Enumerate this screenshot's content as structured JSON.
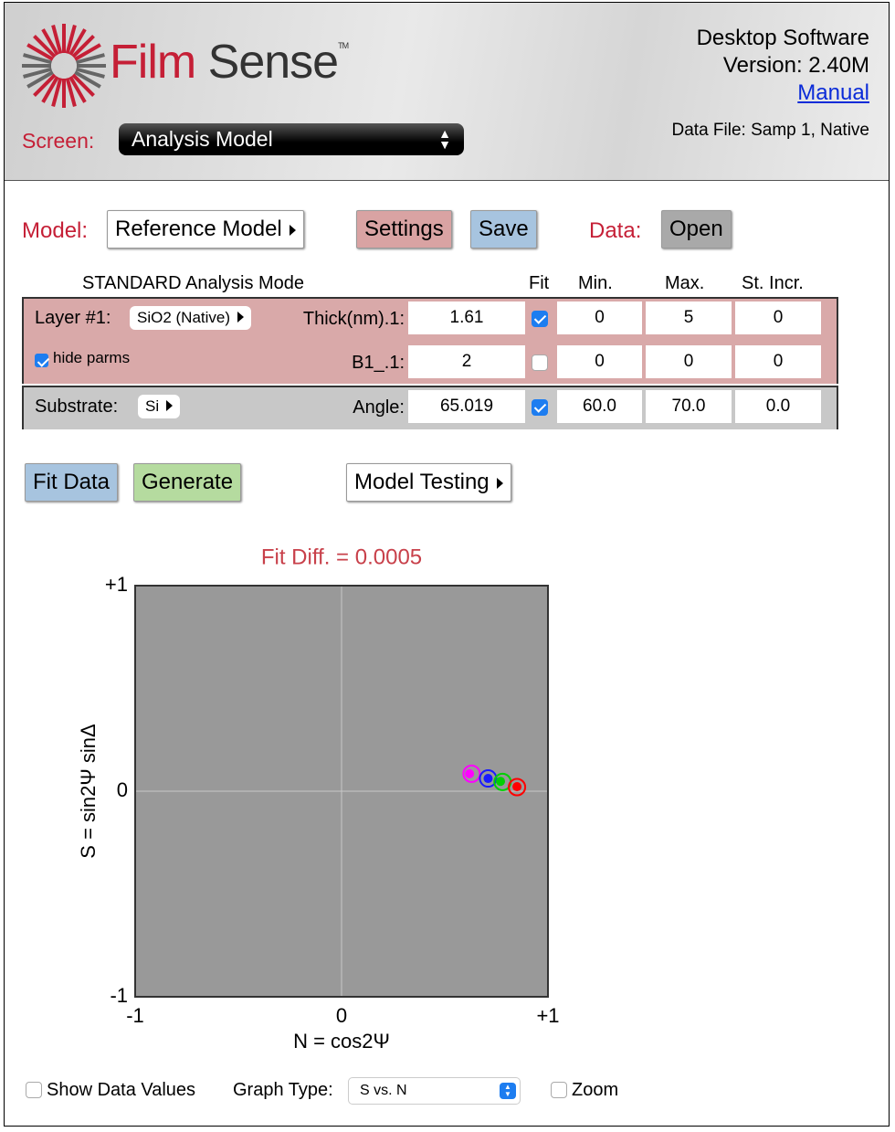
{
  "header": {
    "logo_first": "Film",
    "logo_second": "Sense",
    "trademark": "TM",
    "software": "Desktop Software",
    "version": "Version: 2.40M",
    "manual_link": "Manual",
    "data_file": "Data File: Samp 1, Native",
    "screen_label": "Screen:",
    "screen_select": "Analysis Model"
  },
  "toolbar": {
    "model_label": "Model:",
    "model_button": "Reference Model",
    "settings_button": "Settings",
    "save_button": "Save",
    "data_label": "Data:",
    "open_button": "Open"
  },
  "table": {
    "mode": "STANDARD Analysis Mode",
    "columns": [
      "Fit",
      "Min.",
      "Max.",
      "St. Incr."
    ],
    "rows": [
      {
        "label": "Layer #1:",
        "selector": "SiO2 (Native)",
        "param": "Thick(nm).1:",
        "value": "1.61",
        "fit": true,
        "min": "0",
        "max": "5",
        "step": "0"
      },
      {
        "option": "hide parms",
        "option_checked": true,
        "param": "B1_.1:",
        "value": "2",
        "fit": false,
        "min": "0",
        "max": "0",
        "step": "0"
      },
      {
        "label": "Substrate:",
        "selector": "Si",
        "param": "Angle:",
        "value": "65.019",
        "fit": true,
        "min": "60.0",
        "max": "70.0",
        "step": "0.0"
      }
    ]
  },
  "actions": {
    "fit_button": "Fit Data",
    "generate_button": "Generate",
    "testing_button": "Model Testing"
  },
  "chart_data": {
    "type": "scatter",
    "title": "Fit Diff. = 0.0005",
    "x_label": "N = cos2Ψ",
    "y_label": "S = sin2Ψ sinΔ",
    "xlim": [
      -1,
      1
    ],
    "ylim": [
      -1,
      1
    ],
    "xticks": [
      -1,
      0,
      {
        "value": 1,
        "label": "+1"
      }
    ],
    "yticks": [
      -1,
      0,
      {
        "value": 1,
        "label": "+1"
      }
    ],
    "grid": true,
    "series": [
      {
        "color": "#ff00ff",
        "x": [
          0.62
        ],
        "values": [
          0.085
        ],
        "model_x": [
          0.63
        ],
        "model_values": [
          0.085
        ]
      },
      {
        "color": "#1a1aff",
        "x": [
          0.71
        ],
        "values": [
          0.062
        ],
        "model_x": [
          0.71
        ],
        "model_values": [
          0.062
        ]
      },
      {
        "color": "#00d000",
        "x": [
          0.77
        ],
        "values": [
          0.048
        ],
        "model_x": [
          0.78
        ],
        "model_values": [
          0.045
        ]
      },
      {
        "color": "#ff0000",
        "x": [
          0.85
        ],
        "values": [
          0.022
        ],
        "model_x": [
          0.85
        ],
        "model_values": [
          0.02
        ]
      }
    ]
  },
  "footer": {
    "show_values": "Show Data Values",
    "show_values_checked": false,
    "graph_type_label": "Graph Type:",
    "graph_type": "S vs. N",
    "zoom": "Zoom",
    "zoom_checked": false
  }
}
